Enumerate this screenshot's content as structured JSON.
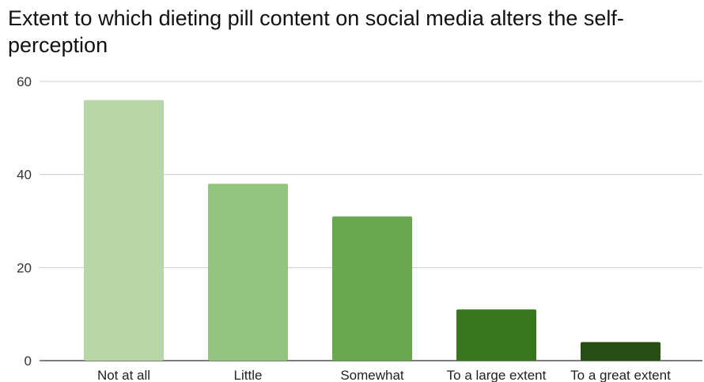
{
  "chart_data": {
    "type": "bar",
    "title": "Extent to which dieting pill content on social media alters the self-perception",
    "xlabel": "",
    "ylabel": "",
    "categories": [
      "Not at all",
      "Little",
      "Somewhat",
      "To a large extent",
      "To a great extent"
    ],
    "values": [
      56,
      38,
      31,
      11,
      4
    ],
    "bar_colors": [
      "#b7d7a8",
      "#93c47d",
      "#6aa84f",
      "#38761d",
      "#274e13"
    ],
    "ylim": [
      0,
      60
    ],
    "yticks": [
      0,
      20,
      40,
      60
    ],
    "grid": true,
    "legend": "none"
  }
}
